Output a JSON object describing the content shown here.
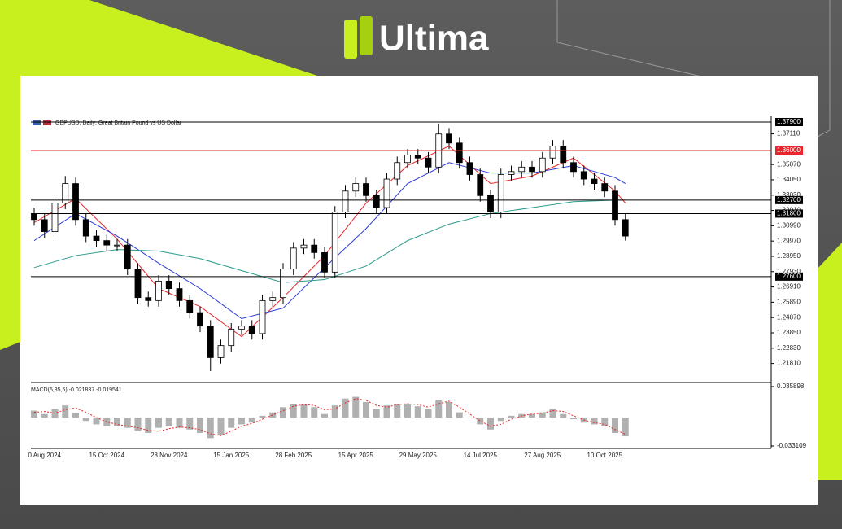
{
  "brand": "Ultima",
  "chart_data": [
    {
      "type": "candlestick",
      "title": "GBPUSD, Daily:  Great Britain Pound vs US Dollar",
      "categories": [
        null,
        "0 Aug 2024",
        null,
        null,
        null,
        null,
        null,
        "15 Oct 2024",
        null,
        null,
        null,
        null,
        null,
        "28 Nov 2024",
        null,
        null,
        null,
        null,
        null,
        "15 Jan 2025",
        null,
        null,
        null,
        null,
        null,
        "28 Feb 2025",
        null,
        null,
        null,
        null,
        null,
        "15 Apr 2025",
        null,
        null,
        null,
        null,
        null,
        "29 May 2025",
        null,
        null,
        null,
        null,
        null,
        "14 Jul 2025",
        null,
        null,
        null,
        null,
        null,
        "27 Aug 2025",
        null,
        null,
        null,
        null,
        null,
        "10 Oct 2025",
        null,
        null
      ],
      "open": [
        1.318,
        1.314,
        1.306,
        1.325,
        1.338,
        1.314,
        1.303,
        1.3,
        1.297,
        1.297,
        1.281,
        1.262,
        1.26,
        1.273,
        1.268,
        1.26,
        1.252,
        1.243,
        1.222,
        1.23,
        1.241,
        1.243,
        1.238,
        1.26,
        1.262,
        1.281,
        1.295,
        1.297,
        1.292,
        1.279,
        1.319,
        1.333,
        1.338,
        1.33,
        1.322,
        1.341,
        1.352,
        1.357,
        1.355,
        1.349,
        1.371,
        1.365,
        1.352,
        1.344,
        1.33,
        1.319,
        1.344,
        1.346,
        1.349,
        1.346,
        1.355,
        1.363,
        1.352,
        1.346,
        1.341,
        1.338,
        1.333,
        1.314
      ],
      "high": [
        1.322,
        1.318,
        1.329,
        1.343,
        1.342,
        1.318,
        1.307,
        1.304,
        1.301,
        1.301,
        1.285,
        1.266,
        1.277,
        1.277,
        1.272,
        1.264,
        1.256,
        1.247,
        1.234,
        1.245,
        1.247,
        1.247,
        1.264,
        1.266,
        1.285,
        1.299,
        1.301,
        1.301,
        1.296,
        1.323,
        1.337,
        1.342,
        1.342,
        1.334,
        1.345,
        1.356,
        1.361,
        1.361,
        1.359,
        1.378,
        1.375,
        1.369,
        1.356,
        1.348,
        1.334,
        1.348,
        1.35,
        1.353,
        1.353,
        1.359,
        1.367,
        1.367,
        1.356,
        1.35,
        1.345,
        1.342,
        1.337,
        1.318
      ],
      "low": [
        1.31,
        1.302,
        1.302,
        1.321,
        1.31,
        1.299,
        1.296,
        1.293,
        1.293,
        1.277,
        1.258,
        1.256,
        1.256,
        1.264,
        1.256,
        1.248,
        1.239,
        1.213,
        1.218,
        1.226,
        1.237,
        1.234,
        1.234,
        1.256,
        1.258,
        1.277,
        1.291,
        1.288,
        1.275,
        1.275,
        1.315,
        1.329,
        1.326,
        1.318,
        1.318,
        1.337,
        1.348,
        1.351,
        1.345,
        1.345,
        1.361,
        1.348,
        1.34,
        1.326,
        1.315,
        1.315,
        1.34,
        1.342,
        1.342,
        1.342,
        1.351,
        1.348,
        1.342,
        1.337,
        1.334,
        1.329,
        1.31,
        1.3
      ],
      "close": [
        1.314,
        1.306,
        1.325,
        1.338,
        1.314,
        1.303,
        1.3,
        1.297,
        1.297,
        1.281,
        1.262,
        1.26,
        1.273,
        1.268,
        1.26,
        1.252,
        1.243,
        1.222,
        1.23,
        1.241,
        1.243,
        1.238,
        1.26,
        1.262,
        1.281,
        1.295,
        1.297,
        1.292,
        1.279,
        1.319,
        1.333,
        1.338,
        1.33,
        1.322,
        1.341,
        1.352,
        1.357,
        1.355,
        1.349,
        1.371,
        1.365,
        1.352,
        1.344,
        1.33,
        1.319,
        1.344,
        1.346,
        1.349,
        1.346,
        1.355,
        1.363,
        1.352,
        1.346,
        1.341,
        1.338,
        1.333,
        1.314,
        1.303
      ],
      "up_color": "#ffffff",
      "down_color": "#000000",
      "lines": [
        {
          "color": "#e8262b",
          "x": [
            0,
            4,
            8,
            12,
            16,
            20,
            24,
            28,
            32,
            36,
            40,
            44,
            48,
            52,
            56,
            57
          ],
          "values": [
            1.312,
            1.328,
            1.301,
            1.268,
            1.256,
            1.236,
            1.262,
            1.29,
            1.325,
            1.35,
            1.363,
            1.338,
            1.343,
            1.355,
            1.333,
            1.325
          ]
        },
        {
          "color": "#2b3bd6",
          "x": [
            0,
            4,
            8,
            12,
            16,
            20,
            24,
            28,
            32,
            36,
            40,
            44,
            48,
            52,
            56,
            57
          ],
          "values": [
            1.3,
            1.318,
            1.303,
            1.285,
            1.268,
            1.248,
            1.255,
            1.282,
            1.308,
            1.338,
            1.352,
            1.345,
            1.345,
            1.35,
            1.342,
            1.338
          ]
        },
        {
          "color": "#2a9a8a",
          "x": [
            0,
            4,
            8,
            12,
            16,
            20,
            24,
            28,
            32,
            36,
            40,
            44,
            48,
            52,
            56,
            57
          ],
          "values": [
            1.282,
            1.29,
            1.294,
            1.293,
            1.288,
            1.28,
            1.272,
            1.274,
            1.283,
            1.3,
            1.311,
            1.318,
            1.322,
            1.326,
            1.327,
            1.327
          ]
        }
      ],
      "levels": [
        {
          "value": 1.379,
          "label": "1.37900",
          "color": "#000000"
        },
        {
          "value": 1.36,
          "label": "1.36000",
          "color": "#e8262b"
        },
        {
          "value": 1.327,
          "label": "1.32700",
          "color": "#000000"
        },
        {
          "value": 1.318,
          "label": "1.31800",
          "color": "#000000"
        },
        {
          "value": 1.276,
          "label": "1.27600",
          "color": "#000000"
        }
      ],
      "ylim": [
        1.2054,
        1.379
      ],
      "yticks": [
        {
          "value": 1.3711,
          "label": "1.37110"
        },
        {
          "value": 1.3507,
          "label": "1.35070"
        },
        {
          "value": 1.3405,
          "label": "1.34050"
        },
        {
          "value": 1.3303,
          "label": "1.33030"
        },
        {
          "value": 1.3201,
          "label": "1.32010"
        },
        {
          "value": 1.3099,
          "label": "1.30990"
        },
        {
          "value": 1.2997,
          "label": "1.29970"
        },
        {
          "value": 1.2895,
          "label": "1.28950"
        },
        {
          "value": 1.2793,
          "label": "1.27930"
        },
        {
          "value": 1.2691,
          "label": "1.26910"
        },
        {
          "value": 1.2589,
          "label": "1.25890"
        },
        {
          "value": 1.2487,
          "label": "1.24870"
        },
        {
          "value": 1.2385,
          "label": "1.23850"
        },
        {
          "value": 1.2283,
          "label": "1.22830"
        },
        {
          "value": 1.2181,
          "label": "1.21810"
        }
      ]
    },
    {
      "type": "macd",
      "title": "MACD(5,35,5) -0.021837 -0.019541",
      "histogram": [
        0.008,
        0.004,
        0.01,
        0.014,
        0.005,
        -0.004,
        -0.008,
        -0.01,
        -0.01,
        -0.012,
        -0.016,
        -0.018,
        -0.012,
        -0.01,
        -0.012,
        -0.014,
        -0.018,
        -0.024,
        -0.02,
        -0.012,
        -0.008,
        -0.006,
        0.002,
        0.006,
        0.012,
        0.016,
        0.016,
        0.012,
        0.004,
        0.014,
        0.022,
        0.024,
        0.018,
        0.01,
        0.014,
        0.016,
        0.016,
        0.013,
        0.01,
        0.02,
        0.018,
        0.006,
        0.0,
        -0.008,
        -0.014,
        -0.004,
        0.002,
        0.004,
        0.004,
        0.006,
        0.01,
        0.004,
        -0.002,
        -0.006,
        -0.008,
        -0.01,
        -0.018,
        -0.021837
      ],
      "signal": [
        0.006,
        0.007,
        0.005,
        0.009,
        0.011,
        0.006,
        0.0,
        -0.005,
        -0.008,
        -0.01,
        -0.012,
        -0.015,
        -0.016,
        -0.013,
        -0.011,
        -0.012,
        -0.014,
        -0.019,
        -0.021,
        -0.016,
        -0.01,
        -0.007,
        -0.002,
        0.003,
        0.008,
        0.013,
        0.015,
        0.014,
        0.009,
        0.01,
        0.017,
        0.022,
        0.02,
        0.014,
        0.012,
        0.015,
        0.016,
        0.015,
        0.012,
        0.016,
        0.019,
        0.012,
        0.004,
        -0.004,
        -0.01,
        -0.008,
        -0.002,
        0.002,
        0.004,
        0.005,
        0.008,
        0.007,
        0.002,
        -0.003,
        -0.006,
        -0.008,
        -0.014,
        -0.019541
      ],
      "histogram_color": "#b0b0b0",
      "signal_color": "#e8262b",
      "ylim": [
        -0.033109,
        0.035898
      ],
      "yticks": [
        0.035898,
        -0.033109
      ]
    }
  ]
}
